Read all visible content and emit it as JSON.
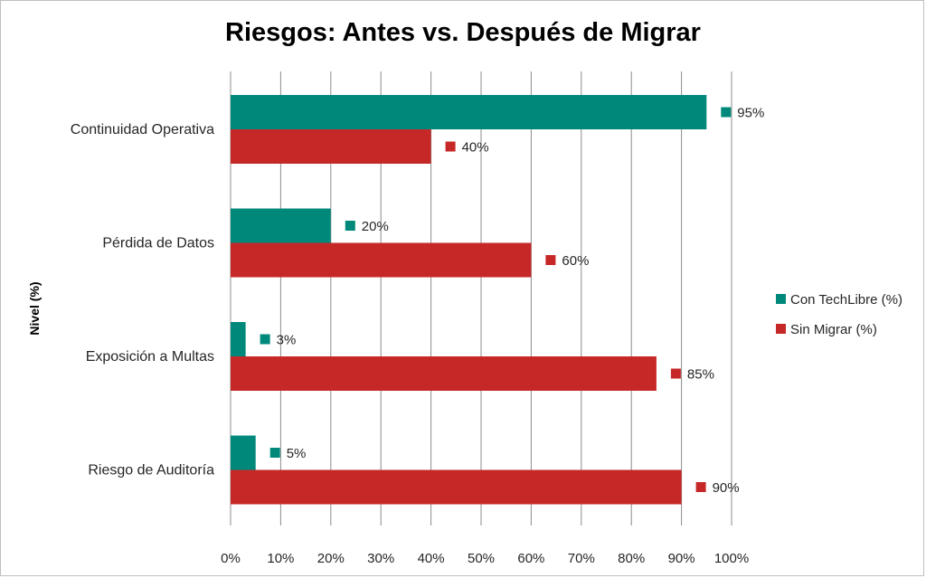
{
  "chart_data": {
    "type": "bar",
    "orientation": "horizontal",
    "title": "Riesgos: Antes vs. Después de Migrar",
    "xlabel": "",
    "ylabel": "Nivel (%)",
    "xlim": [
      0,
      100
    ],
    "x_ticks": [
      0,
      10,
      20,
      30,
      40,
      50,
      60,
      70,
      80,
      90,
      100
    ],
    "tick_suffix": "%",
    "grid": "vertical",
    "legend_position": "right",
    "categories": [
      "Continuidad Operativa",
      "Pérdida de Datos",
      "Exposición a Multas",
      "Riesgo de Auditoría"
    ],
    "series": [
      {
        "name": "Con TechLibre (%)",
        "values": [
          95,
          20,
          3,
          5
        ],
        "color": "#00897b"
      },
      {
        "name": "Sin Migrar (%)",
        "values": [
          40,
          60,
          85,
          90
        ],
        "color": "#c62828"
      }
    ],
    "data_label_suffix": "%"
  }
}
